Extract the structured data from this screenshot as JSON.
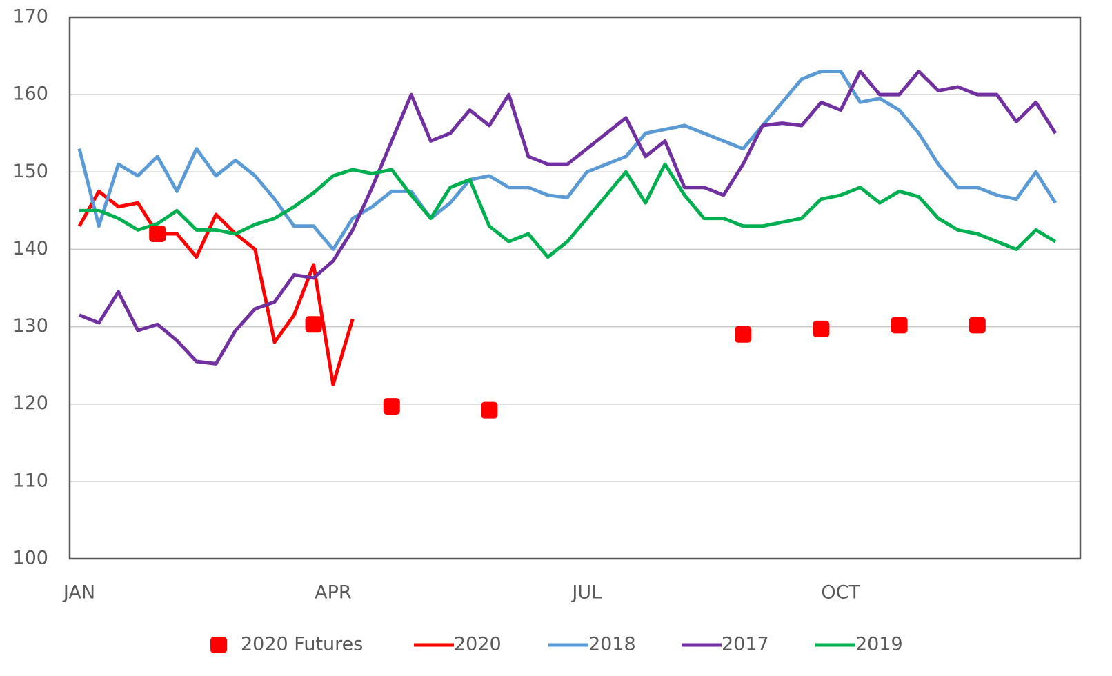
{
  "chart_data": {
    "type": "line",
    "categories": [
      "JAN",
      null,
      null,
      null,
      null,
      null,
      null,
      null,
      null,
      null,
      null,
      null,
      null,
      "APR",
      null,
      null,
      null,
      null,
      null,
      null,
      null,
      null,
      null,
      null,
      null,
      null,
      "JUL",
      null,
      null,
      null,
      null,
      null,
      null,
      null,
      null,
      null,
      null,
      null,
      null,
      "OCT",
      null,
      null,
      null,
      null,
      null,
      null,
      null,
      null,
      null,
      null,
      null
    ],
    "ylim": [
      100,
      170
    ],
    "yticks": [
      100,
      110,
      120,
      130,
      140,
      150,
      160,
      170
    ],
    "grid": true,
    "legend": "bottom",
    "series": [
      {
        "name": "2020 Futures",
        "color": "#ff0000",
        "marker": "square",
        "values": [
          null,
          null,
          null,
          null,
          142,
          null,
          null,
          null,
          null,
          null,
          null,
          null,
          130.3,
          null,
          null,
          null,
          119.7,
          null,
          null,
          null,
          null,
          119.2,
          null,
          null,
          null,
          null,
          null,
          null,
          null,
          null,
          null,
          null,
          null,
          null,
          129,
          null,
          null,
          null,
          129.7,
          null,
          null,
          null,
          130.2,
          null,
          null,
          null,
          130.2,
          null,
          null,
          null,
          null
        ]
      },
      {
        "name": "2020",
        "color": "#ff0000",
        "values": [
          143,
          147.5,
          145.5,
          146,
          142,
          142,
          139,
          144.5,
          142,
          140,
          128,
          131.5,
          138,
          122.5,
          131,
          null,
          null,
          null,
          null,
          null,
          null,
          null,
          null,
          null,
          null,
          null,
          null,
          null,
          null,
          null,
          null,
          null,
          null,
          null,
          null,
          null,
          null,
          null,
          null,
          null,
          null,
          null,
          null,
          null,
          null,
          null,
          null,
          null,
          null,
          null,
          null
        ]
      },
      {
        "name": "2018",
        "color": "#5b9bd5",
        "values": [
          153,
          143,
          151,
          149.5,
          152,
          147.5,
          153,
          149.5,
          151.5,
          149.5,
          146.5,
          143,
          143,
          140,
          144,
          145.5,
          147.5,
          147.5,
          144,
          146,
          149,
          149.5,
          148,
          148,
          147,
          146.7,
          150,
          151,
          152,
          155,
          155.5,
          156,
          155,
          154,
          153,
          156,
          159,
          162,
          163,
          163,
          159,
          159.5,
          158,
          155,
          151,
          148,
          148,
          147,
          146.5,
          150,
          146
        ]
      },
      {
        "name": "2017",
        "color": "#7030a0",
        "values": [
          131.5,
          130.5,
          134.5,
          129.5,
          130.3,
          128.2,
          125.5,
          125.2,
          129.5,
          132.3,
          133.2,
          136.7,
          136.3,
          138.5,
          142.5,
          148,
          154,
          160,
          154,
          155,
          158,
          156,
          160,
          152,
          151,
          151,
          153,
          155,
          157,
          152,
          154,
          148,
          148,
          147,
          151,
          156,
          156.3,
          156,
          159,
          158,
          163,
          160,
          160,
          163,
          160.5,
          161,
          160,
          160,
          156.5,
          159,
          155
        ]
      },
      {
        "name": "2019",
        "color": "#00b050",
        "values": [
          145,
          145,
          144,
          142.5,
          143.3,
          145,
          142.5,
          142.5,
          142,
          143.2,
          144,
          145.5,
          147.3,
          149.5,
          150.3,
          149.8,
          150.3,
          147,
          144,
          148,
          149,
          143,
          141,
          142,
          139,
          141,
          144,
          147,
          150,
          146,
          151,
          147,
          144,
          144,
          143,
          143,
          143.5,
          144,
          146.5,
          147,
          148,
          146,
          147.5,
          146.8,
          144,
          142.5,
          142,
          141,
          140,
          142.5,
          141
        ]
      }
    ]
  }
}
